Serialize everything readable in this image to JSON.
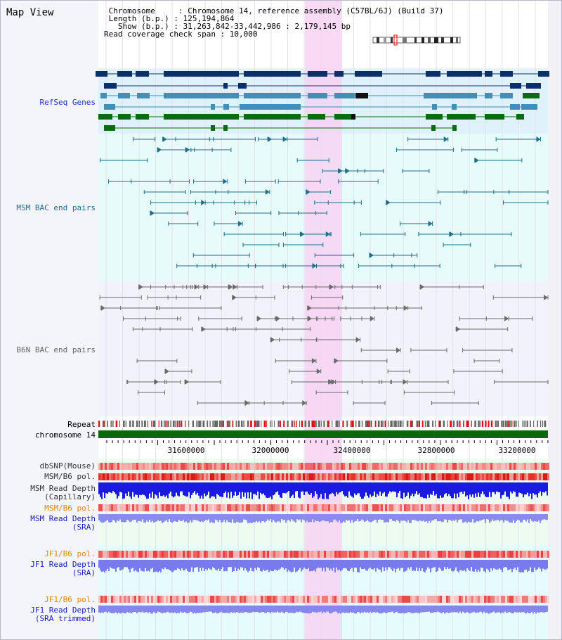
{
  "title": "Map View",
  "header": {
    "lines": [
      " Chromosome     : Chromosome 14, reference assembly (C57BL/6J) (Build 37)",
      " Length (b.p.) : 125,194,864",
      "   Show (b.p.) : 31,263,842-33,442,986 : 2,179,145 bp",
      "Read coverage check span : 10,000"
    ]
  },
  "tracks": {
    "refseq": "RefSeq Genes",
    "msm_bac": "MSM BAC end pairs",
    "b6n_bac": "B6N BAC end pairs",
    "repeat": "Repeat",
    "chromosome": "chromosome 14",
    "dbsnp": "dbSNP(Mouse)",
    "msm_b6_pol": "MSM/B6 pol.",
    "msm_read_depth_cap_1": "MSM Read Depth",
    "msm_read_depth_cap_2": "(Capillary)",
    "msm_b6_pol_2": "MSM/B6 pol.",
    "msm_read_depth_sra_1": "MSM Read Depth",
    "msm_read_depth_sra_2": "(SRA)",
    "jf1_b6_pol": "JF1/B6 pol.",
    "jf1_read_depth_sra_1": "JF1 Read Depth",
    "jf1_read_depth_sra_2": "(SRA)",
    "jf1_b6_pol_2": "JF1/B6 pol.",
    "jf1_read_depth_trim_1": "JF1 Read Depth",
    "jf1_read_depth_trim_2": "(SRA trimmed)"
  },
  "axis": {
    "ticks": [
      "31600000",
      "32000000",
      "32400000",
      "32800000",
      "33200000"
    ]
  },
  "colors": {
    "refseq_dark": "#0b2f6b",
    "refseq_mid": "#3f8fb8",
    "refseq_green": "#0b6b12",
    "bac_msm": "#1d6f8a",
    "bac_b6n": "#6a6a6a",
    "highlight": "#f7d3f3",
    "chrom_bar": "#0a6a0a"
  }
}
